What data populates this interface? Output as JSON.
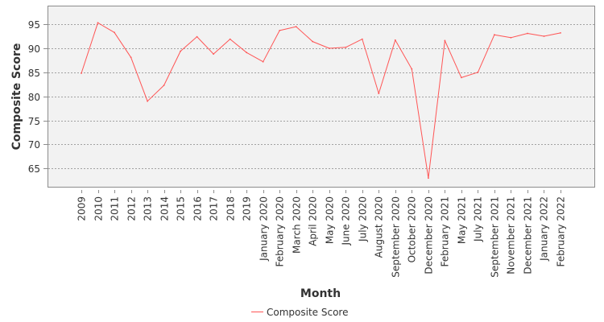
{
  "chart_data": {
    "type": "line",
    "title": "",
    "xlabel": "Month",
    "ylabel": "Composite Score",
    "ylim": [
      61.2,
      98.7
    ],
    "yticks": [
      65,
      70,
      75,
      80,
      85,
      90,
      95
    ],
    "grid": true,
    "legend_position": "bottom",
    "background": "#f2f2f2",
    "gridline_color": "#888888",
    "categories": [
      "2009",
      "2010",
      "2011",
      "2012",
      "2013",
      "2014",
      "2015",
      "2016",
      "2017",
      "2018",
      "2019",
      "January 2020",
      "February 2020",
      "March 2020",
      "April 2020",
      "May 2020",
      "June 2020",
      "July 2020",
      "August 2020",
      "September 2020",
      "October 2020",
      "December 2020",
      "February 2021",
      "May 2021",
      "July 2021",
      "September 2021",
      "November 2021",
      "December 2021",
      "January 2022",
      "February 2022"
    ],
    "series": [
      {
        "name": "Composite Score",
        "color": "#ff5555",
        "values": [
          84.8,
          95.3,
          93.3,
          88.1,
          79.0,
          82.3,
          89.4,
          92.4,
          88.8,
          91.9,
          89.1,
          87.2,
          93.7,
          94.5,
          91.4,
          90.0,
          90.2,
          91.9,
          80.6,
          91.7,
          85.7,
          63.0,
          91.6,
          83.9,
          85.0,
          92.8,
          92.2,
          93.1,
          92.5,
          93.2
        ]
      }
    ]
  }
}
